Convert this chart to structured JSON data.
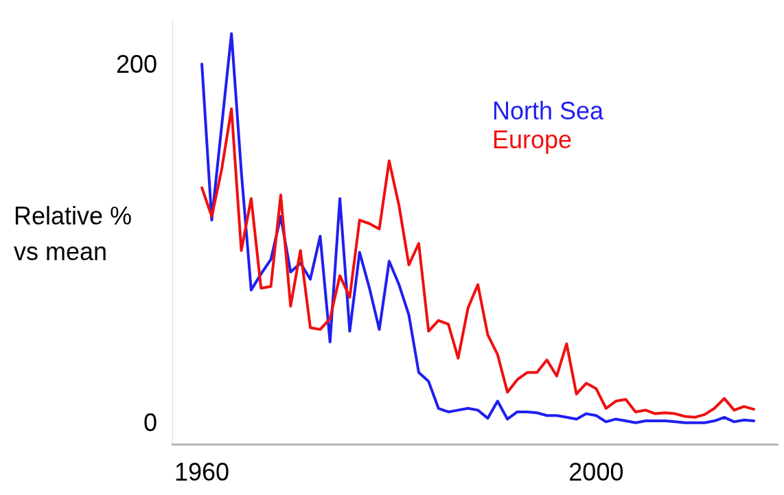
{
  "chart_data": {
    "type": "line",
    "ylabel": "Relative %\nvs mean",
    "x": [
      1960,
      1961,
      1962,
      1963,
      1964,
      1965,
      1966,
      1967,
      1968,
      1969,
      1970,
      1971,
      1972,
      1973,
      1974,
      1975,
      1976,
      1977,
      1978,
      1979,
      1980,
      1981,
      1982,
      1983,
      1984,
      1985,
      1986,
      1987,
      1988,
      1989,
      1990,
      1991,
      1992,
      1993,
      1994,
      1995,
      1996,
      1997,
      1998,
      1999,
      2000,
      2001,
      2002,
      2003,
      2004,
      2005,
      2006,
      2007,
      2008,
      2009,
      2010,
      2011,
      2012,
      2013,
      2014,
      2015,
      2016
    ],
    "series": [
      {
        "name": "North Sea",
        "color": "#1f1fef",
        "values": [
          200,
          113,
          165,
          217,
          140,
          74,
          83,
          91,
          115,
          84,
          89,
          80,
          104,
          45,
          125,
          51,
          95,
          75,
          52,
          90,
          77,
          60,
          28,
          23,
          8,
          6,
          7,
          8,
          7,
          2.5,
          12,
          2,
          6,
          6,
          5.5,
          4,
          4,
          3,
          2,
          5,
          4,
          0.5,
          2,
          1,
          0,
          1,
          1,
          1,
          0.5,
          0,
          0,
          0,
          1,
          3,
          0.5,
          1.5,
          1
        ]
      },
      {
        "name": "Europe",
        "color": "#f01010",
        "values": [
          131,
          115,
          141,
          175,
          96,
          125,
          75,
          76,
          127,
          65,
          96,
          53,
          52,
          58,
          82,
          70,
          113,
          111,
          108,
          146,
          121,
          88,
          100,
          51,
          57,
          55,
          36,
          64,
          77,
          49,
          38,
          17,
          24,
          28,
          28,
          35,
          26,
          44,
          16,
          22,
          19,
          8,
          12,
          13,
          6,
          7,
          5,
          5.5,
          5,
          3.5,
          3,
          4.5,
          8,
          13.5,
          7,
          9,
          7.5
        ]
      }
    ],
    "xlim": [
      1957,
      2018.5
    ],
    "xticks": [
      1960,
      2000
    ],
    "ylim": [
      -12,
      225
    ],
    "yticks": [
      0,
      200
    ],
    "grid": false,
    "legend": "top right",
    "marker": "none",
    "line_style": "solid"
  }
}
